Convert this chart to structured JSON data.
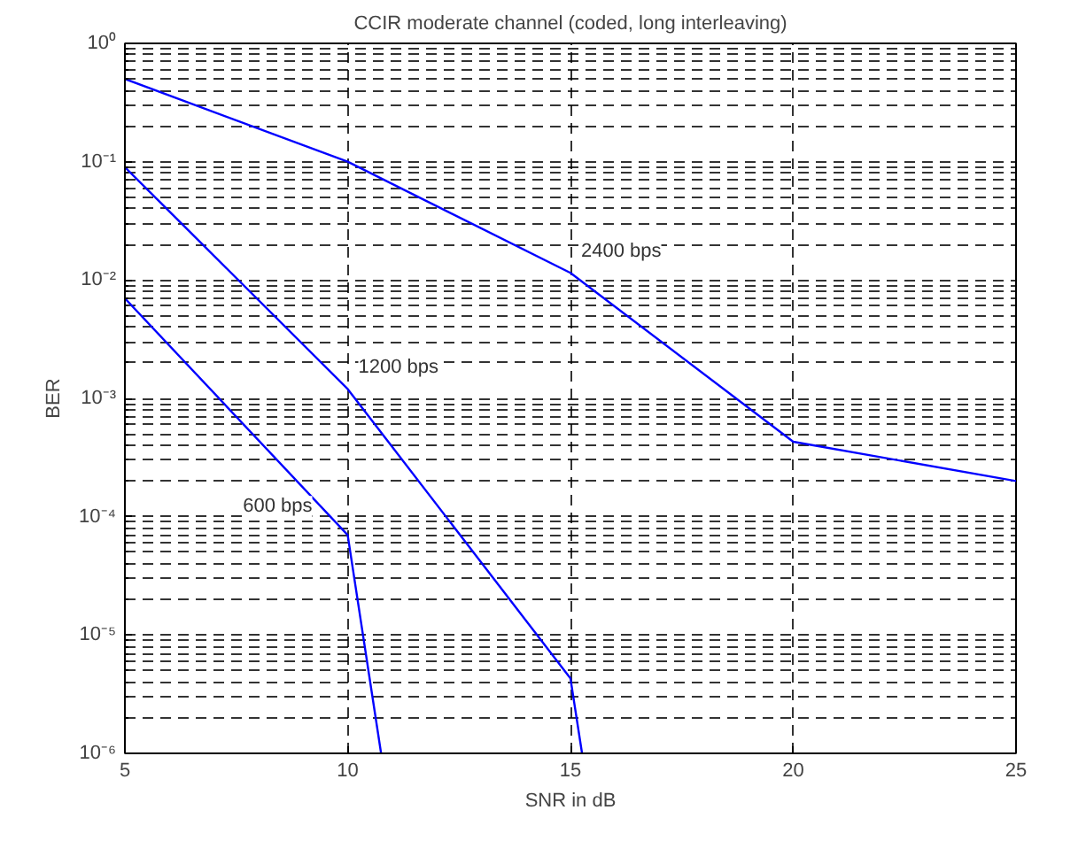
{
  "chart_data": {
    "type": "line",
    "title": "CCIR moderate channel (coded, long interleaving)",
    "xlabel": "SNR in dB",
    "ylabel": "BER",
    "log": "y",
    "grid": true,
    "marker": "none",
    "line_style": "solid",
    "xlim": [
      5,
      25
    ],
    "xticks": [
      5,
      10,
      15,
      20,
      25
    ],
    "ylim": [
      1e-06,
      1
    ],
    "yticks": [
      {
        "value": 1e-06,
        "label": "10⁻⁶"
      },
      {
        "value": 1e-05,
        "label": "10⁻⁵"
      },
      {
        "value": 0.0001,
        "label": "10⁻⁴"
      },
      {
        "value": 0.001,
        "label": "10⁻³"
      },
      {
        "value": 0.01,
        "label": "10⁻²"
      },
      {
        "value": 0.1,
        "label": "10⁻¹"
      },
      {
        "value": 1,
        "label": "10⁰"
      }
    ],
    "series": [
      {
        "name": "2400 bps",
        "color": "#0000ff",
        "x": [
          5,
          10,
          15,
          20,
          25
        ],
        "values": [
          0.5,
          0.1,
          0.0115,
          0.00043,
          0.0002
        ]
      },
      {
        "name": "1200 bps",
        "color": "#0000ff",
        "x": [
          5,
          10,
          15,
          15.26
        ],
        "values": [
          0.09,
          0.0012,
          4.3e-06,
          1e-06
        ]
      },
      {
        "name": "600 bps",
        "color": "#0000ff",
        "x": [
          5,
          10,
          10.75
        ],
        "values": [
          0.007,
          7e-05,
          1e-06
        ]
      }
    ]
  }
}
